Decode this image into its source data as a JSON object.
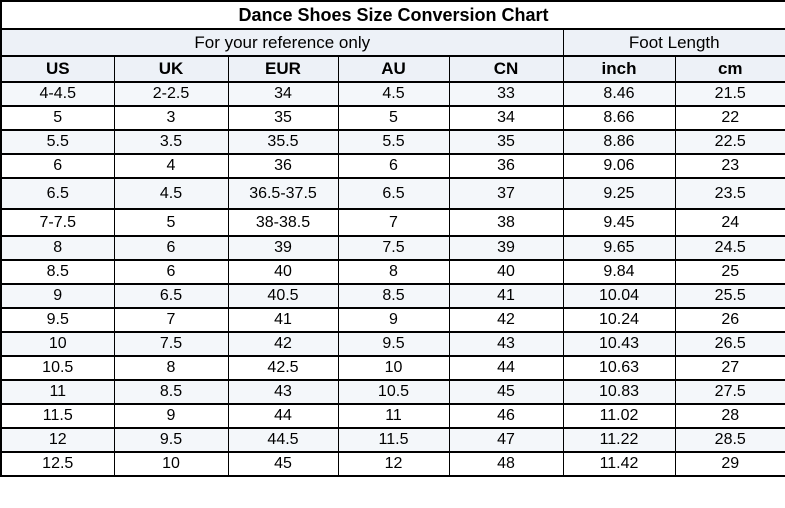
{
  "title": "Dance Shoes Size Conversion Chart",
  "subheaders": {
    "reference": "For your reference only",
    "foot_length": "Foot Length"
  },
  "colors": {
    "border": "#000000",
    "text": "#000000",
    "row_band": "#f4f7fa",
    "header_band": "#edf1f7",
    "background": "#ffffff"
  },
  "chart_data": {
    "type": "table",
    "title": "Dance Shoes Size Conversion Chart",
    "column_groups": [
      {
        "label": "For your reference only",
        "span": 5
      },
      {
        "label": "Foot Length",
        "span": 2
      }
    ],
    "columns": [
      "US",
      "UK",
      "EUR",
      "AU",
      "CN",
      "inch",
      "cm"
    ],
    "rows": [
      [
        "4-4.5",
        "2-2.5",
        "34",
        "4.5",
        "33",
        "8.46",
        "21.5"
      ],
      [
        "5",
        "3",
        "35",
        "5",
        "34",
        "8.66",
        "22"
      ],
      [
        "5.5",
        "3.5",
        "35.5",
        "5.5",
        "35",
        "8.86",
        "22.5"
      ],
      [
        "6",
        "4",
        "36",
        "6",
        "36",
        "9.06",
        "23"
      ],
      [
        "6.5",
        "4.5",
        "36.5-37.5",
        "6.5",
        "37",
        "9.25",
        "23.5"
      ],
      [
        "7-7.5",
        "5",
        "38-38.5",
        "7",
        "38",
        "9.45",
        "24"
      ],
      [
        "8",
        "6",
        "39",
        "7.5",
        "39",
        "9.65",
        "24.5"
      ],
      [
        "8.5",
        "6",
        "40",
        "8",
        "40",
        "9.84",
        "25"
      ],
      [
        "9",
        "6.5",
        "40.5",
        "8.5",
        "41",
        "10.04",
        "25.5"
      ],
      [
        "9.5",
        "7",
        "41",
        "9",
        "42",
        "10.24",
        "26"
      ],
      [
        "10",
        "7.5",
        "42",
        "9.5",
        "43",
        "10.43",
        "26.5"
      ],
      [
        "10.5",
        "8",
        "42.5",
        "10",
        "44",
        "10.63",
        "27"
      ],
      [
        "11",
        "8.5",
        "43",
        "10.5",
        "45",
        "10.83",
        "27.5"
      ],
      [
        "11.5",
        "9",
        "44",
        "11",
        "46",
        "11.02",
        "28"
      ],
      [
        "12",
        "9.5",
        "44.5",
        "11.5",
        "47",
        "11.22",
        "28.5"
      ],
      [
        "12.5",
        "10",
        "45",
        "12",
        "48",
        "11.42",
        "29"
      ]
    ],
    "tall_row_indexes": [
      4
    ],
    "semi_tall_row_indexes": [
      5
    ],
    "banded_rows": "odd rows (1st, 3rd, ...) lightly tinted"
  }
}
